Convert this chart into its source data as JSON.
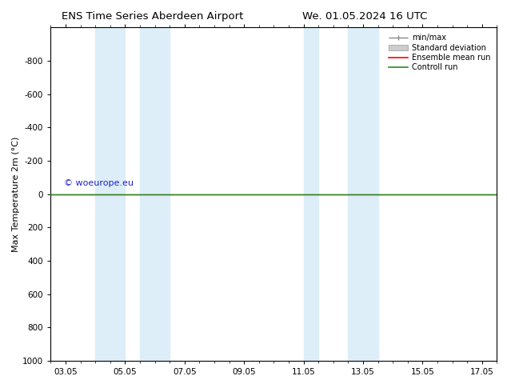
{
  "title_left": "ENS Time Series Aberdeen Airport",
  "title_right": "We. 01.05.2024 16 UTC",
  "ylabel": "Max Temperature 2m (°C)",
  "ylim": [
    1000,
    -1000
  ],
  "y_ticks": [
    -800,
    -600,
    -400,
    -200,
    0,
    200,
    400,
    600,
    800,
    1000
  ],
  "xlim": [
    2.5,
    17.5
  ],
  "x_tick_labels": [
    "03.05",
    "05.05",
    "07.05",
    "09.05",
    "11.05",
    "13.05",
    "15.05",
    "17.05"
  ],
  "x_tick_positions": [
    3,
    5,
    7,
    9,
    11,
    13,
    15,
    17
  ],
  "blue_bands": [
    [
      4.0,
      5.0
    ],
    [
      5.5,
      6.5
    ],
    [
      11.0,
      11.5
    ],
    [
      12.5,
      13.5
    ]
  ],
  "blue_band_color": "#ddeef8",
  "green_line_y": 0,
  "red_line_y": 0,
  "green_line_color": "#228B22",
  "red_line_color": "#ff0000",
  "watermark": "© woeurope.eu",
  "watermark_color": "#2222cc",
  "watermark_fontsize": 8,
  "legend_labels": [
    "min/max",
    "Standard deviation",
    "Ensemble mean run",
    "Controll run"
  ],
  "legend_colors": [
    "#888888",
    "#cccccc",
    "#ff0000",
    "#228B22"
  ],
  "background_color": "#ffffff",
  "plot_bg_color": "#ffffff",
  "title_fontsize": 9.5,
  "axis_fontsize": 8,
  "tick_fontsize": 7.5,
  "legend_fontsize": 7
}
